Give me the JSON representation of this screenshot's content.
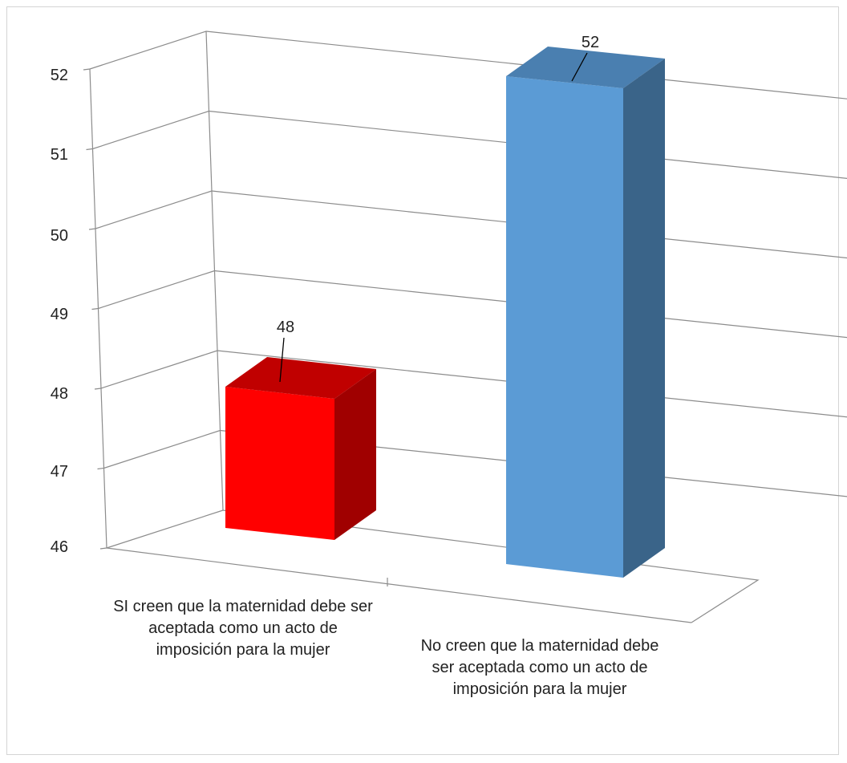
{
  "chart_data": {
    "type": "bar",
    "categories": [
      "SI creen que la maternidad debe ser aceptada como un acto de imposición para la mujer",
      "No creen que la maternidad debe ser aceptada como un acto de imposición para la mujer"
    ],
    "values": [
      48,
      52
    ],
    "data_labels": [
      "48",
      "52"
    ],
    "y_ticks": [
      "46",
      "47",
      "48",
      "49",
      "50",
      "51",
      "52"
    ],
    "ylim": [
      46,
      52
    ],
    "title": "",
    "xlabel": "",
    "ylabel": "",
    "grid": true,
    "legend": "none",
    "three_d": true,
    "colors": {
      "bar1_front": "#ff0000",
      "bar1_top": "#c00000",
      "bar1_side": "#a00000",
      "bar2_front": "#5b9bd5",
      "bar2_top": "#4a7fb0",
      "bar2_side": "#3a6489",
      "grid": "#8c8c8c"
    }
  }
}
